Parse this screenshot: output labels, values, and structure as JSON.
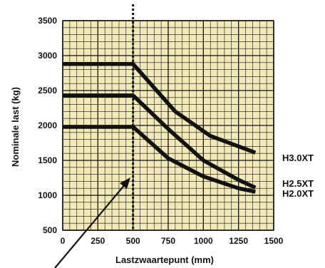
{
  "chart_data": {
    "type": "line",
    "xlabel": "Lastzwaartepunt (mm)",
    "ylabel": "Nominale last (kg)",
    "xlim": [
      0,
      1500
    ],
    "ylim": [
      500,
      3500
    ],
    "x_ticks": [
      "0",
      "250",
      "500",
      "750",
      "1000",
      "1250",
      "1500"
    ],
    "y_ticks": [
      "500",
      "1000",
      "1500",
      "2000",
      "2500",
      "3000",
      "3500"
    ],
    "grid": true,
    "grid_color": "#f2e9b8",
    "line_color": "#111111",
    "reference_line": {
      "x": 500,
      "style": "dotted"
    },
    "annotation": "arrow",
    "series": [
      {
        "name": "H3.0XT",
        "x": [
          0,
          500,
          800,
          1050,
          1370
        ],
        "y": [
          2880,
          2880,
          2200,
          1850,
          1610
        ]
      },
      {
        "name": "H2.5XT",
        "x": [
          0,
          500,
          750,
          1000,
          1250,
          1370
        ],
        "y": [
          2430,
          2430,
          1950,
          1500,
          1220,
          1110
        ]
      },
      {
        "name": "H2.0XT",
        "x": [
          0,
          500,
          750,
          1000,
          1250,
          1370
        ],
        "y": [
          1980,
          1980,
          1530,
          1270,
          1100,
          1050
        ]
      }
    ]
  }
}
